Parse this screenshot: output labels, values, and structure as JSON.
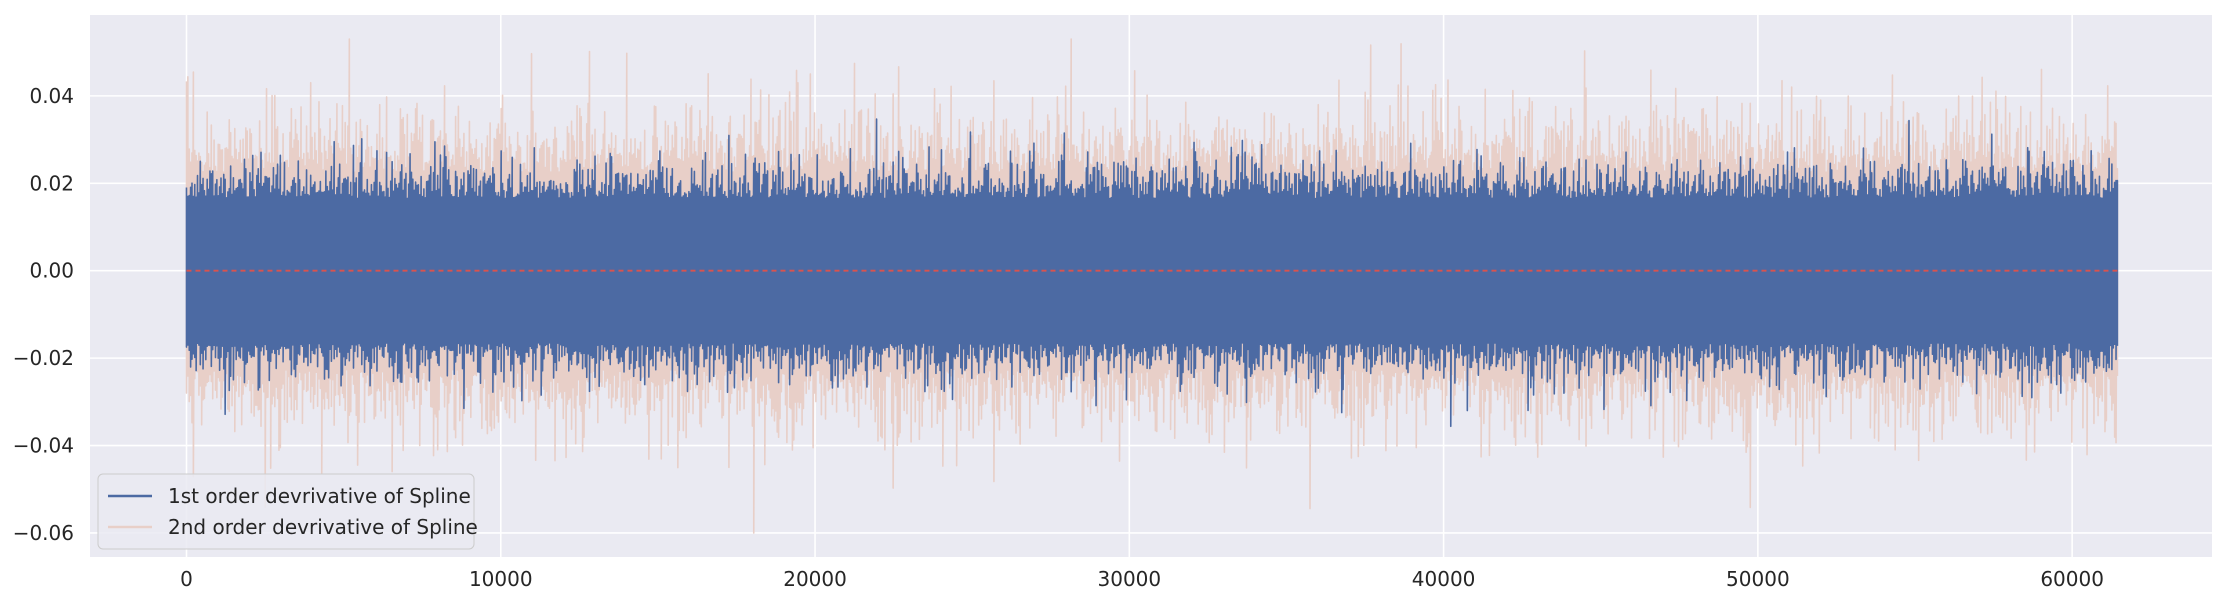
{
  "chart_data": {
    "type": "line",
    "title": "",
    "xlabel": "",
    "ylabel": "",
    "xlim": [
      -3070,
      64450
    ],
    "ylim": [
      -0.0655,
      0.0585
    ],
    "xticks": [
      0,
      10000,
      20000,
      30000,
      40000,
      50000,
      60000
    ],
    "xtick_labels": [
      "0",
      "10000",
      "20000",
      "30000",
      "40000",
      "50000",
      "60000"
    ],
    "yticks": [
      -0.06,
      -0.04,
      -0.02,
      0.0,
      0.02,
      0.04
    ],
    "ytick_labels": [
      "−0.06",
      "−0.04",
      "−0.02",
      "0.00",
      "0.02",
      "0.04"
    ],
    "grid": true,
    "legend_position": "lower-left",
    "n_points": 61440,
    "series": [
      {
        "name": "2nd order devrivative of Spline",
        "color": "#e8cfc8",
        "x_range": [
          0,
          61440
        ],
        "typical_range": [
          -0.03,
          0.03
        ],
        "min": -0.06,
        "max": 0.053,
        "mean": 0.0
      },
      {
        "name": "1st order devrivative of Spline",
        "color": "#4c6aa3",
        "x_range": [
          0,
          61440
        ],
        "typical_range": [
          -0.022,
          0.022
        ],
        "min": -0.041,
        "max": 0.043,
        "mean": 0.0
      }
    ],
    "reference_line": {
      "y": 0.0,
      "color": "#d9534f",
      "style": "dashed"
    }
  }
}
